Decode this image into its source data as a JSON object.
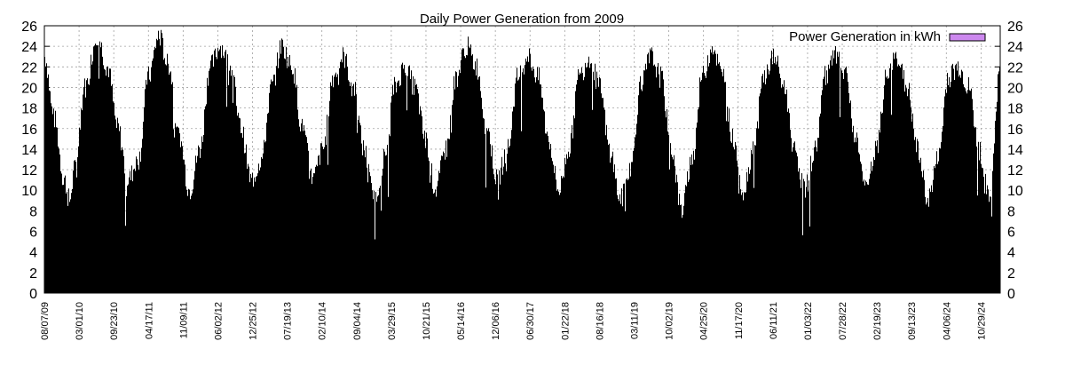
{
  "chart_data": {
    "type": "bar",
    "title": "Daily Power Generation from 2009",
    "xlabel": "",
    "ylabel": "",
    "ylim": [
      0,
      26
    ],
    "yticks": [
      0,
      2,
      4,
      6,
      8,
      10,
      12,
      14,
      16,
      18,
      20,
      22,
      24,
      26
    ],
    "xlim": [
      "08/07/09",
      "02/20/25"
    ],
    "x_tick_labels": [
      "08/07/09",
      "03/01/10",
      "09/23/10",
      "04/17/11",
      "11/09/11",
      "06/02/12",
      "12/25/12",
      "07/19/13",
      "02/10/14",
      "09/04/14",
      "03/29/15",
      "10/21/15",
      "05/14/16",
      "12/06/16",
      "06/30/17",
      "01/22/18",
      "08/16/18",
      "03/11/19",
      "10/02/19",
      "04/25/20",
      "11/17/20",
      "06/11/21",
      "01/03/22",
      "07/28/22",
      "02/19/23",
      "09/13/23",
      "04/06/24",
      "10/29/24"
    ],
    "grid": true,
    "legend_position": "top-right",
    "series": [
      {
        "name": "Power Generation in kWh",
        "color": "#000000",
        "legend_color": "#cc88ee",
        "points": [
          {
            "x": "08/07/09",
            "y": 23
          },
          {
            "x": "10/01/09",
            "y": 17
          },
          {
            "x": "12/01/09",
            "y": 11
          },
          {
            "x": "01/01/10",
            "y": 9
          },
          {
            "x": "02/01/10",
            "y": 12
          },
          {
            "x": "04/01/10",
            "y": 20
          },
          {
            "x": "06/15/10",
            "y": 25
          },
          {
            "x": "08/15/10",
            "y": 22
          },
          {
            "x": "10/15/10",
            "y": 16
          },
          {
            "x": "12/15/10",
            "y": 11
          },
          {
            "x": "02/15/11",
            "y": 13
          },
          {
            "x": "04/15/11",
            "y": 21
          },
          {
            "x": "06/15/11",
            "y": 25
          },
          {
            "x": "08/15/11",
            "y": 22
          },
          {
            "x": "10/15/11",
            "y": 15
          },
          {
            "x": "12/15/11",
            "y": 10
          },
          {
            "x": "02/15/12",
            "y": 14
          },
          {
            "x": "04/15/12",
            "y": 22
          },
          {
            "x": "06/15/12",
            "y": 24
          },
          {
            "x": "08/15/12",
            "y": 22
          },
          {
            "x": "10/15/12",
            "y": 16
          },
          {
            "x": "12/15/12",
            "y": 11
          },
          {
            "x": "02/15/13",
            "y": 13
          },
          {
            "x": "04/15/13",
            "y": 20
          },
          {
            "x": "06/15/13",
            "y": 24
          },
          {
            "x": "08/15/13",
            "y": 22
          },
          {
            "x": "10/15/13",
            "y": 16
          },
          {
            "x": "12/15/13",
            "y": 11
          },
          {
            "x": "02/15/14",
            "y": 14
          },
          {
            "x": "04/15/14",
            "y": 21
          },
          {
            "x": "06/15/14",
            "y": 23
          },
          {
            "x": "08/15/14",
            "y": 20
          },
          {
            "x": "10/15/14",
            "y": 14
          },
          {
            "x": "12/15/14",
            "y": 9
          },
          {
            "x": "02/15/15",
            "y": 13
          },
          {
            "x": "04/15/15",
            "y": 20
          },
          {
            "x": "06/15/15",
            "y": 22
          },
          {
            "x": "08/15/15",
            "y": 20
          },
          {
            "x": "10/15/15",
            "y": 15
          },
          {
            "x": "12/15/15",
            "y": 10
          },
          {
            "x": "02/15/16",
            "y": 14
          },
          {
            "x": "04/15/16",
            "y": 21
          },
          {
            "x": "06/15/16",
            "y": 24
          },
          {
            "x": "08/15/16",
            "y": 22
          },
          {
            "x": "10/15/16",
            "y": 16
          },
          {
            "x": "12/15/16",
            "y": 11
          },
          {
            "x": "02/15/17",
            "y": 14
          },
          {
            "x": "04/15/17",
            "y": 21
          },
          {
            "x": "06/15/17",
            "y": 23
          },
          {
            "x": "08/15/17",
            "y": 21
          },
          {
            "x": "10/15/17",
            "y": 15
          },
          {
            "x": "12/15/17",
            "y": 10
          },
          {
            "x": "02/15/18",
            "y": 14
          },
          {
            "x": "04/15/18",
            "y": 21
          },
          {
            "x": "06/15/18",
            "y": 23
          },
          {
            "x": "08/15/18",
            "y": 20
          },
          {
            "x": "10/15/18",
            "y": 14
          },
          {
            "x": "12/15/18",
            "y": 9
          },
          {
            "x": "02/15/19",
            "y": 12
          },
          {
            "x": "04/15/19",
            "y": 20
          },
          {
            "x": "06/15/19",
            "y": 23
          },
          {
            "x": "08/15/19",
            "y": 21
          },
          {
            "x": "10/15/19",
            "y": 14
          },
          {
            "x": "12/15/19",
            "y": 8
          },
          {
            "x": "02/15/20",
            "y": 13
          },
          {
            "x": "04/15/20",
            "y": 21
          },
          {
            "x": "06/15/20",
            "y": 24
          },
          {
            "x": "08/15/20",
            "y": 21
          },
          {
            "x": "10/15/20",
            "y": 15
          },
          {
            "x": "12/15/20",
            "y": 10
          },
          {
            "x": "02/15/21",
            "y": 14
          },
          {
            "x": "04/15/21",
            "y": 21
          },
          {
            "x": "06/15/21",
            "y": 23
          },
          {
            "x": "08/15/21",
            "y": 20
          },
          {
            "x": "10/15/21",
            "y": 14
          },
          {
            "x": "12/15/21",
            "y": 10
          },
          {
            "x": "02/15/22",
            "y": 14
          },
          {
            "x": "04/15/22",
            "y": 21
          },
          {
            "x": "06/15/22",
            "y": 23
          },
          {
            "x": "08/15/22",
            "y": 21
          },
          {
            "x": "10/15/22",
            "y": 15
          },
          {
            "x": "12/15/22",
            "y": 10
          },
          {
            "x": "02/15/23",
            "y": 14
          },
          {
            "x": "04/15/23",
            "y": 21
          },
          {
            "x": "06/15/23",
            "y": 23
          },
          {
            "x": "08/15/23",
            "y": 20
          },
          {
            "x": "10/15/23",
            "y": 14
          },
          {
            "x": "12/15/23",
            "y": 9
          },
          {
            "x": "02/15/24",
            "y": 13
          },
          {
            "x": "04/15/24",
            "y": 21
          },
          {
            "x": "06/15/24",
            "y": 22
          },
          {
            "x": "08/15/24",
            "y": 20
          },
          {
            "x": "10/15/24",
            "y": 14
          },
          {
            "x": "12/15/24",
            "y": 9
          },
          {
            "x": "02/20/25",
            "y": 22
          }
        ]
      }
    ]
  }
}
